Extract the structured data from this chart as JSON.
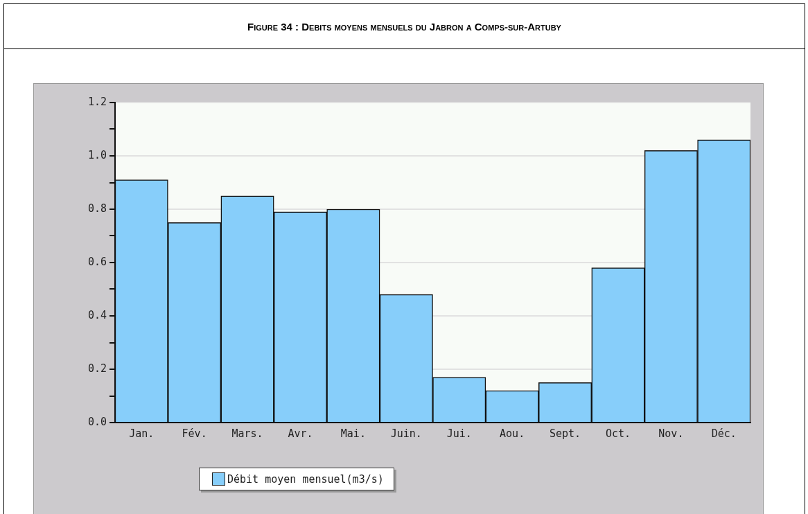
{
  "chart_data": {
    "type": "bar",
    "title": "Figure 34 : Debits moyens mensuels du Jabron a Comps-sur-Artuby",
    "categories": [
      "Jan.",
      "Fév.",
      "Mars.",
      "Avr.",
      "Mai.",
      "Juin.",
      "Jui.",
      "Aou.",
      "Sept.",
      "Oct.",
      "Nov.",
      "Déc."
    ],
    "series": [
      {
        "name": "Débit moyen mensuel(m3/s)",
        "color": "#87cefa",
        "values": [
          0.91,
          0.75,
          0.85,
          0.79,
          0.8,
          0.48,
          0.17,
          0.12,
          0.15,
          0.58,
          1.02,
          1.06
        ]
      }
    ],
    "ylim": [
      0,
      1.2
    ],
    "yticks": [
      {
        "value": 0,
        "label": "0.0"
      },
      {
        "value": 0.1,
        "label": null
      },
      0.2,
      {
        "value": 0.3,
        "label": null
      },
      0.4,
      {
        "value": 0.5,
        "label": null
      },
      0.6,
      {
        "value": 0.7,
        "label": null
      },
      0.8,
      {
        "value": 0.9,
        "label": null
      },
      {
        "value": 1,
        "label": "1.0"
      },
      {
        "value": 1.1,
        "label": null
      },
      1.2
    ],
    "grid": "y",
    "legend": "bottom"
  }
}
